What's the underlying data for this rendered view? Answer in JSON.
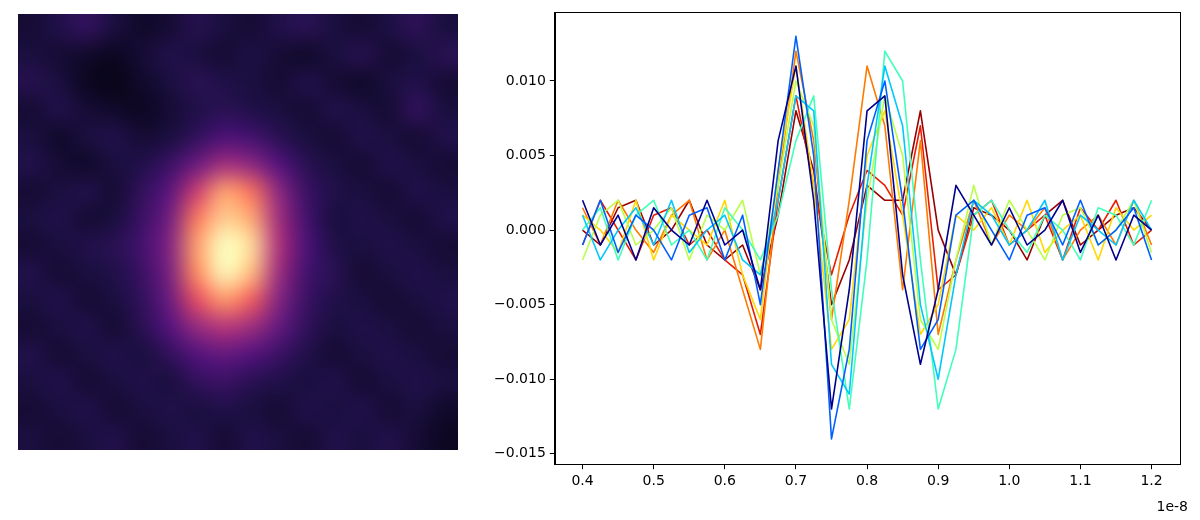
{
  "chart_data": [
    {
      "type": "image",
      "tick_labels": false,
      "zlim": [
        0,
        1
      ],
      "cells": [
        [
          0.1,
          0.14,
          0.18,
          0.12,
          0.08,
          0.1,
          0.15,
          0.12,
          0.1,
          0.14,
          0.16,
          0.12,
          0.1,
          0.13,
          0.17,
          0.12
        ],
        [
          0.12,
          0.1,
          0.08,
          0.06,
          0.1,
          0.14,
          0.12,
          0.1,
          0.13,
          0.1,
          0.08,
          0.12,
          0.15,
          0.1,
          0.12,
          0.16
        ],
        [
          0.15,
          0.12,
          0.06,
          0.04,
          0.08,
          0.12,
          0.16,
          0.14,
          0.12,
          0.1,
          0.14,
          0.1,
          0.08,
          0.12,
          0.14,
          0.1
        ],
        [
          0.1,
          0.14,
          0.1,
          0.08,
          0.06,
          0.1,
          0.14,
          0.16,
          0.14,
          0.12,
          0.1,
          0.14,
          0.12,
          0.1,
          0.18,
          0.12
        ],
        [
          0.12,
          0.08,
          0.12,
          0.14,
          0.1,
          0.12,
          0.18,
          0.24,
          0.22,
          0.16,
          0.12,
          0.1,
          0.14,
          0.12,
          0.1,
          0.14
        ],
        [
          0.14,
          0.1,
          0.08,
          0.12,
          0.14,
          0.2,
          0.32,
          0.45,
          0.4,
          0.26,
          0.16,
          0.12,
          0.1,
          0.14,
          0.12,
          0.1
        ],
        [
          0.1,
          0.12,
          0.14,
          0.1,
          0.18,
          0.28,
          0.55,
          0.8,
          0.7,
          0.4,
          0.2,
          0.14,
          0.12,
          0.1,
          0.14,
          0.12
        ],
        [
          0.12,
          0.14,
          0.1,
          0.12,
          0.2,
          0.34,
          0.72,
          0.9,
          0.82,
          0.45,
          0.22,
          0.12,
          0.14,
          0.12,
          0.1,
          0.14
        ],
        [
          0.1,
          0.12,
          0.14,
          0.16,
          0.22,
          0.38,
          0.8,
          1.0,
          0.92,
          0.48,
          0.24,
          0.14,
          0.12,
          0.14,
          0.12,
          0.1
        ],
        [
          0.14,
          0.1,
          0.12,
          0.14,
          0.2,
          0.36,
          0.76,
          0.98,
          0.86,
          0.44,
          0.22,
          0.16,
          0.1,
          0.12,
          0.14,
          0.12
        ],
        [
          0.12,
          0.14,
          0.1,
          0.12,
          0.18,
          0.32,
          0.62,
          0.78,
          0.66,
          0.38,
          0.2,
          0.14,
          0.12,
          0.1,
          0.12,
          0.14
        ],
        [
          0.1,
          0.12,
          0.14,
          0.1,
          0.16,
          0.26,
          0.42,
          0.5,
          0.44,
          0.3,
          0.18,
          0.12,
          0.14,
          0.12,
          0.1,
          0.12
        ],
        [
          0.14,
          0.1,
          0.12,
          0.14,
          0.12,
          0.18,
          0.26,
          0.3,
          0.26,
          0.2,
          0.14,
          0.1,
          0.12,
          0.14,
          0.12,
          0.1
        ],
        [
          0.12,
          0.14,
          0.1,
          0.12,
          0.14,
          0.12,
          0.18,
          0.2,
          0.16,
          0.14,
          0.12,
          0.14,
          0.1,
          0.12,
          0.14,
          0.12
        ],
        [
          0.1,
          0.12,
          0.14,
          0.1,
          0.12,
          0.14,
          0.12,
          0.14,
          0.12,
          0.1,
          0.14,
          0.12,
          0.14,
          0.1,
          0.12,
          0.08
        ],
        [
          0.12,
          0.1,
          0.12,
          0.14,
          0.1,
          0.12,
          0.14,
          0.1,
          0.14,
          0.12,
          0.1,
          0.14,
          0.12,
          0.14,
          0.1,
          0.06
        ]
      ]
    },
    {
      "type": "line",
      "grid": false,
      "annotations": [
        {
          "text": "1e-8"
        }
      ],
      "xlim": [
        0.361,
        1.24
      ],
      "xticks": [
        0.4,
        0.5,
        0.6,
        0.7,
        0.8,
        0.9,
        {
          "value": 1,
          "label": "1.0"
        },
        1.1,
        1.2
      ],
      "ylim": [
        -0.0157,
        0.0146
      ],
      "yticks": [
        {
          "value": -0.015,
          "label": "−0.015"
        },
        {
          "value": -0.01,
          "label": "−0.010"
        },
        {
          "value": -0.005,
          "label": "−0.005"
        },
        {
          "value": 0,
          "label": "0.000"
        },
        {
          "value": 0.005,
          "label": "0.005"
        },
        {
          "value": 0.01,
          "label": "0.010"
        }
      ],
      "x": [
        0.4,
        0.425,
        0.45,
        0.475,
        0.5,
        0.525,
        0.55,
        0.575,
        0.6,
        0.625,
        0.65,
        0.675,
        0.7,
        0.725,
        0.75,
        0.775,
        0.8,
        0.825,
        0.85,
        0.875,
        0.9,
        0.925,
        0.95,
        0.975,
        1,
        1.025,
        1.05,
        1.075,
        1.1,
        1.125,
        1.15,
        1.175,
        1.2
      ],
      "series": [
        {
          "color": "#00008f",
          "values": [
            0.002,
            -0.001,
            0.001,
            -0.002,
            0.0015,
            0,
            -0.001,
            0.002,
            -0.001,
            0,
            -0.004,
            0.006,
            0.011,
            0.002,
            -0.012,
            -0.004,
            0.008,
            0.009,
            -0.003,
            -0.009,
            -0.004,
            0.003,
            0.001,
            -0.001,
            0.0015,
            -0.001,
            0,
            0.002,
            -0.0015,
            0.001,
            -0.002,
            0.001,
            0
          ]
        },
        {
          "color": "#0060ff",
          "values": [
            -0.001,
            0.002,
            -0.0015,
            0.001,
            0,
            -0.002,
            0.001,
            0.0015,
            -0.002,
            0.001,
            -0.005,
            0.004,
            0.013,
            0.005,
            -0.014,
            -0.008,
            0.006,
            0.01,
            0.002,
            -0.008,
            -0.006,
            0.001,
            0.002,
            0,
            -0.002,
            0.001,
            0.0015,
            -0.001,
            0.002,
            -0.001,
            0,
            0.0015,
            -0.002
          ]
        },
        {
          "color": "#00c8ff",
          "values": [
            0.001,
            -0.002,
            0,
            0.0015,
            -0.001,
            0.002,
            -0.0015,
            0,
            0.001,
            -0.002,
            -0.003,
            0.002,
            0.009,
            0.008,
            -0.009,
            -0.011,
            0.003,
            0.011,
            0.007,
            -0.005,
            -0.01,
            -0.003,
            0.002,
            0.001,
            -0.001,
            0,
            0.002,
            -0.002,
            0.001,
            0,
            -0.001,
            0.002,
            0
          ]
        },
        {
          "color": "#40ffb8",
          "values": [
            0,
            0.0015,
            -0.002,
            0.001,
            0.002,
            -0.001,
            0,
            -0.002,
            0.0015,
            0,
            -0.002,
            0.001,
            0.006,
            0.009,
            -0.004,
            -0.012,
            -0.002,
            0.012,
            0.01,
            -0.002,
            -0.012,
            -0.008,
            0.001,
            0.002,
            0,
            -0.0015,
            0.001,
            0,
            -0.002,
            0.0015,
            0.001,
            -0.001,
            0.002
          ]
        },
        {
          "color": "#b8ff48",
          "values": [
            -0.002,
            0.001,
            0.002,
            -0.001,
            0,
            0.0015,
            -0.002,
            0.001,
            0,
            0.002,
            -0.003,
            0.003,
            0.01,
            0.007,
            -0.006,
            -0.009,
            0.002,
            0.009,
            0.005,
            -0.006,
            -0.008,
            -0.002,
            0.003,
            -0.001,
            0.002,
            0,
            -0.002,
            0.001,
            0.0015,
            -0.001,
            0,
            0.002,
            -0.0015
          ]
        },
        {
          "color": "#ffd800",
          "values": [
            0.001,
            0,
            -0.0015,
            0.002,
            -0.002,
            0.001,
            0,
            -0.001,
            0.002,
            -0.003,
            -0.006,
            0.004,
            0.011,
            0.003,
            -0.008,
            -0.006,
            0.005,
            0.008,
            0.001,
            -0.007,
            -0.005,
            0.001,
            0,
            0.0015,
            -0.001,
            0.002,
            -0.0015,
            0,
            0.001,
            -0.002,
            0.0015,
            0,
            0.001
          ]
        },
        {
          "color": "#ff7a00",
          "values": [
            0.0015,
            -0.001,
            0.002,
            0,
            -0.0015,
            0.001,
            0.002,
            -0.002,
            0,
            -0.004,
            -0.008,
            0.003,
            0.012,
            0.006,
            -0.006,
            0.002,
            0.011,
            0.007,
            -0.004,
            0.006,
            -0.007,
            -0.002,
            0.002,
            -0.001,
            0.001,
            0,
            0.0015,
            -0.002,
            0,
            0.001,
            -0.001,
            0.002,
            -0.001
          ]
        },
        {
          "color": "#e81c00",
          "values": [
            -0.001,
            0.002,
            0,
            -0.002,
            0.001,
            0.0015,
            -0.001,
            0,
            -0.002,
            -0.003,
            -0.007,
            0.002,
            0.009,
            0.003,
            -0.003,
            0.001,
            0.004,
            0.003,
            0.001,
            0.007,
            -0.004,
            -0.003,
            0.001,
            0.002,
            -0.001,
            0,
            0.001,
            -0.002,
            0.0015,
            0,
            0.002,
            -0.001,
            0
          ]
        },
        {
          "color": "#980000",
          "values": [
            0,
            -0.001,
            0.0015,
            0.002,
            -0.001,
            0,
            0.002,
            -0.001,
            -0.002,
            -0.001,
            -0.004,
            0.001,
            0.008,
            0.004,
            -0.005,
            -0.002,
            0.003,
            0.002,
            0.002,
            0.008,
            0,
            -0.003,
            0.0015,
            0.001,
            0,
            -0.002,
            0.001,
            0.002,
            -0.001,
            0,
            0.001,
            0.0015,
            0
          ]
        }
      ]
    }
  ]
}
